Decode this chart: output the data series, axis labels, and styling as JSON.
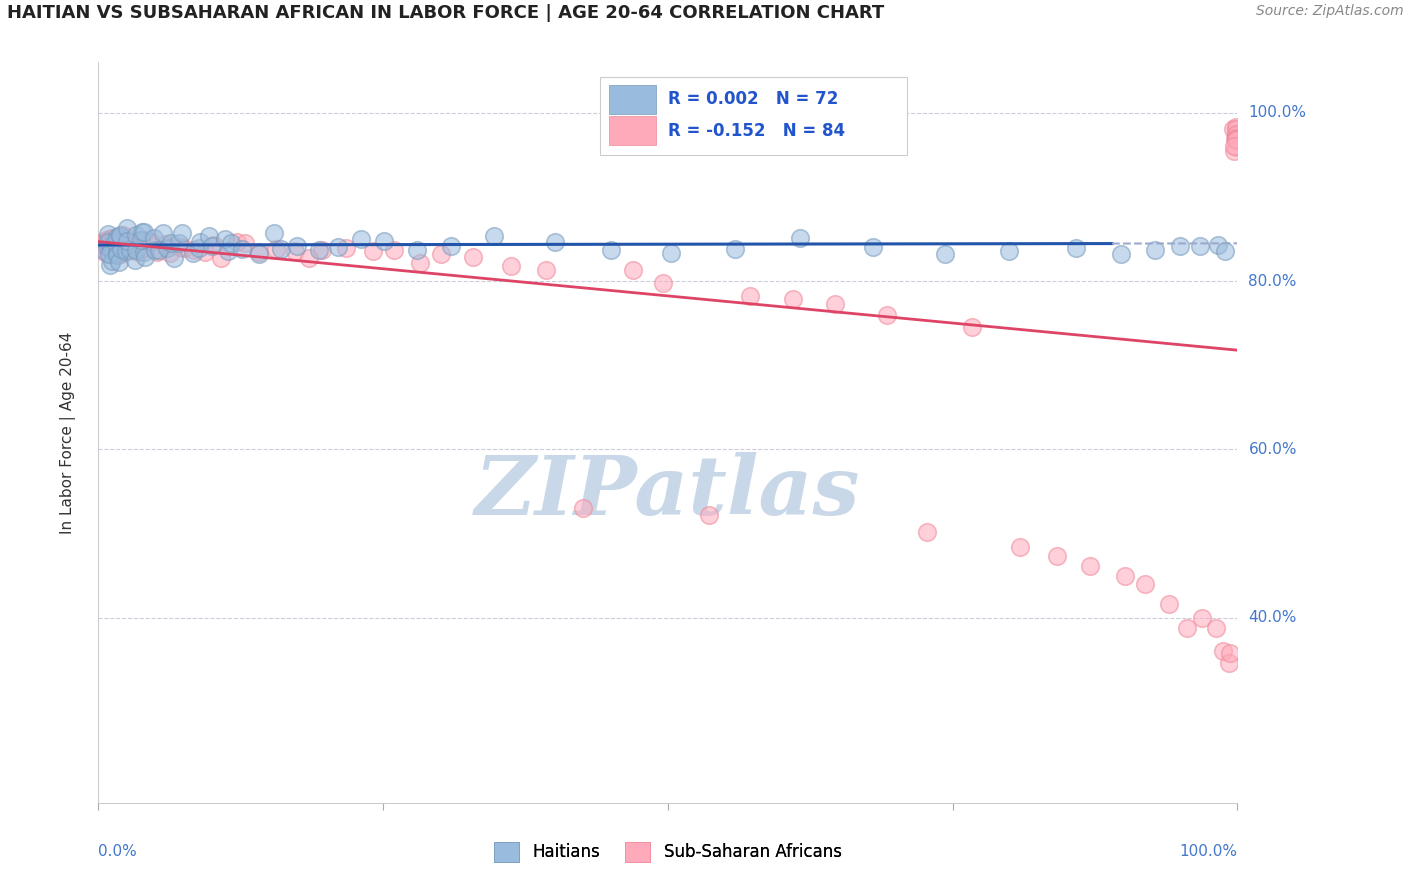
{
  "title": "HAITIAN VS SUBSAHARAN AFRICAN IN LABOR FORCE | AGE 20-64 CORRELATION CHART",
  "source": "Source: ZipAtlas.com",
  "ylabel": "In Labor Force | Age 20-64",
  "xlim": [
    0.0,
    1.0
  ],
  "ylim": [
    0.18,
    1.06
  ],
  "yticks": [
    0.4,
    0.6,
    0.8,
    1.0
  ],
  "ytick_labels": [
    "40.0%",
    "60.0%",
    "80.0%",
    "100.0%"
  ],
  "blue_color": "#99BBDD",
  "pink_color": "#FFAABB",
  "blue_edge_color": "#7799BB",
  "pink_edge_color": "#EE8899",
  "blue_line_color": "#2255AA",
  "pink_line_color": "#DD4466",
  "dashed_line_color": "#99AACC",
  "grid_color": "#CCCCDD",
  "watermark_color": "#C8D8E8",
  "background_color": "#FFFFFF",
  "legend_blue_r": "R = 0.002",
  "legend_blue_n": "N = 72",
  "legend_pink_r": "R = -0.152",
  "legend_pink_n": "N = 84",
  "blue_x": [
    0.005,
    0.007,
    0.008,
    0.009,
    0.01,
    0.011,
    0.012,
    0.013,
    0.014,
    0.015,
    0.016,
    0.017,
    0.018,
    0.019,
    0.02,
    0.022,
    0.023,
    0.025,
    0.027,
    0.028,
    0.03,
    0.032,
    0.034,
    0.036,
    0.038,
    0.04,
    0.042,
    0.045,
    0.048,
    0.05,
    0.055,
    0.058,
    0.06,
    0.065,
    0.068,
    0.072,
    0.076,
    0.08,
    0.085,
    0.09,
    0.095,
    0.1,
    0.11,
    0.115,
    0.12,
    0.13,
    0.14,
    0.15,
    0.16,
    0.175,
    0.19,
    0.21,
    0.23,
    0.25,
    0.28,
    0.31,
    0.35,
    0.4,
    0.45,
    0.5,
    0.56,
    0.62,
    0.68,
    0.74,
    0.8,
    0.86,
    0.9,
    0.93,
    0.95,
    0.97,
    0.98,
    0.99
  ],
  "blue_y": [
    0.84,
    0.83,
    0.85,
    0.82,
    0.845,
    0.835,
    0.825,
    0.84,
    0.85,
    0.83,
    0.845,
    0.835,
    0.855,
    0.825,
    0.84,
    0.85,
    0.83,
    0.86,
    0.835,
    0.845,
    0.855,
    0.825,
    0.84,
    0.835,
    0.85,
    0.845,
    0.83,
    0.86,
    0.84,
    0.85,
    0.835,
    0.845,
    0.855,
    0.83,
    0.84,
    0.845,
    0.85,
    0.835,
    0.84,
    0.845,
    0.85,
    0.84,
    0.855,
    0.835,
    0.845,
    0.84,
    0.835,
    0.85,
    0.84,
    0.845,
    0.835,
    0.84,
    0.85,
    0.845,
    0.835,
    0.84,
    0.85,
    0.845,
    0.84,
    0.835,
    0.84,
    0.85,
    0.845,
    0.84,
    0.835,
    0.845,
    0.84,
    0.835,
    0.845,
    0.84,
    0.845,
    0.84
  ],
  "pink_x": [
    0.005,
    0.006,
    0.007,
    0.008,
    0.009,
    0.01,
    0.011,
    0.012,
    0.013,
    0.014,
    0.015,
    0.016,
    0.017,
    0.018,
    0.019,
    0.02,
    0.022,
    0.024,
    0.026,
    0.028,
    0.03,
    0.033,
    0.036,
    0.04,
    0.044,
    0.048,
    0.053,
    0.058,
    0.063,
    0.07,
    0.077,
    0.084,
    0.092,
    0.1,
    0.11,
    0.12,
    0.13,
    0.14,
    0.155,
    0.17,
    0.185,
    0.2,
    0.22,
    0.24,
    0.26,
    0.28,
    0.3,
    0.33,
    0.36,
    0.395,
    0.43,
    0.465,
    0.5,
    0.535,
    0.57,
    0.61,
    0.65,
    0.69,
    0.73,
    0.77,
    0.81,
    0.84,
    0.87,
    0.9,
    0.92,
    0.94,
    0.958,
    0.97,
    0.98,
    0.988,
    0.992,
    0.995,
    0.997,
    0.998,
    0.999,
    0.999,
    0.999,
    0.999,
    0.999,
    0.999,
    0.999,
    0.999,
    0.999,
    0.999
  ],
  "pink_y": [
    0.845,
    0.84,
    0.85,
    0.835,
    0.845,
    0.84,
    0.85,
    0.835,
    0.845,
    0.84,
    0.85,
    0.835,
    0.845,
    0.84,
    0.85,
    0.835,
    0.845,
    0.84,
    0.835,
    0.85,
    0.84,
    0.845,
    0.835,
    0.84,
    0.85,
    0.845,
    0.835,
    0.84,
    0.835,
    0.845,
    0.84,
    0.835,
    0.83,
    0.84,
    0.835,
    0.845,
    0.84,
    0.835,
    0.84,
    0.835,
    0.83,
    0.835,
    0.84,
    0.83,
    0.835,
    0.825,
    0.83,
    0.825,
    0.82,
    0.815,
    0.54,
    0.81,
    0.8,
    0.53,
    0.79,
    0.78,
    0.77,
    0.76,
    0.5,
    0.75,
    0.49,
    0.47,
    0.46,
    0.45,
    0.435,
    0.42,
    0.39,
    0.395,
    0.38,
    0.36,
    0.34,
    0.36,
    0.98,
    0.97,
    0.99,
    0.98,
    0.97,
    0.975,
    0.96,
    0.965,
    0.96,
    0.975,
    0.97,
    0.965
  ]
}
